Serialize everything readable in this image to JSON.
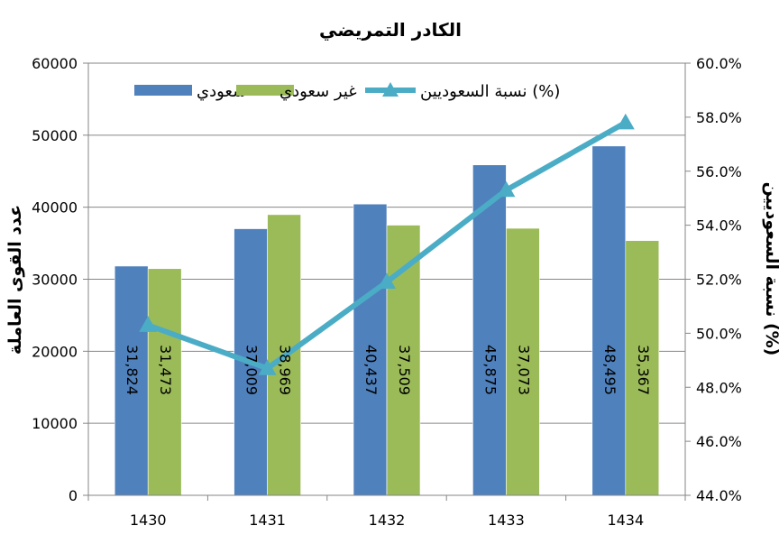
{
  "chart_data": {
    "type": "bar",
    "title": "الكادر التمريضي",
    "categories": [
      "1430",
      "1431",
      "1432",
      "1433",
      "1434"
    ],
    "series": [
      {
        "name": "سعودي",
        "values": [
          31824,
          37009,
          40437,
          45875,
          48495
        ],
        "labels": [
          "31,824",
          "37,009",
          "40,437",
          "45,875",
          "48,495"
        ],
        "color": "#4f81bd"
      },
      {
        "name": "غير سعودي",
        "values": [
          31473,
          38969,
          37509,
          37073,
          35367
        ],
        "labels": [
          "31,473",
          "38,969",
          "37,509",
          "37,073",
          "35,367"
        ],
        "color": "#9bbb59"
      }
    ],
    "line_series": {
      "name": "نسبة السعوديين (%)",
      "values": [
        50.3,
        48.7,
        51.9,
        55.3,
        57.8
      ],
      "color": "#4bacc6",
      "axis": "right"
    },
    "ylabel": "عدد القوى العاملة",
    "y2label": "نسبة السعوديين (%)",
    "ylim": [
      0,
      60000
    ],
    "yticks": [
      "0",
      "10000",
      "20000",
      "30000",
      "40000",
      "50000",
      "60000"
    ],
    "y2lim": [
      44,
      60
    ],
    "y2ticks": [
      "44.0%",
      "46.0%",
      "48.0%",
      "50.0%",
      "52.0%",
      "54.0%",
      "56.0%",
      "58.0%",
      "60.0%"
    ],
    "grid": true,
    "legend_position": "top",
    "colors": {
      "axis": "#868686",
      "grid": "#868686",
      "text": "#000000"
    }
  }
}
